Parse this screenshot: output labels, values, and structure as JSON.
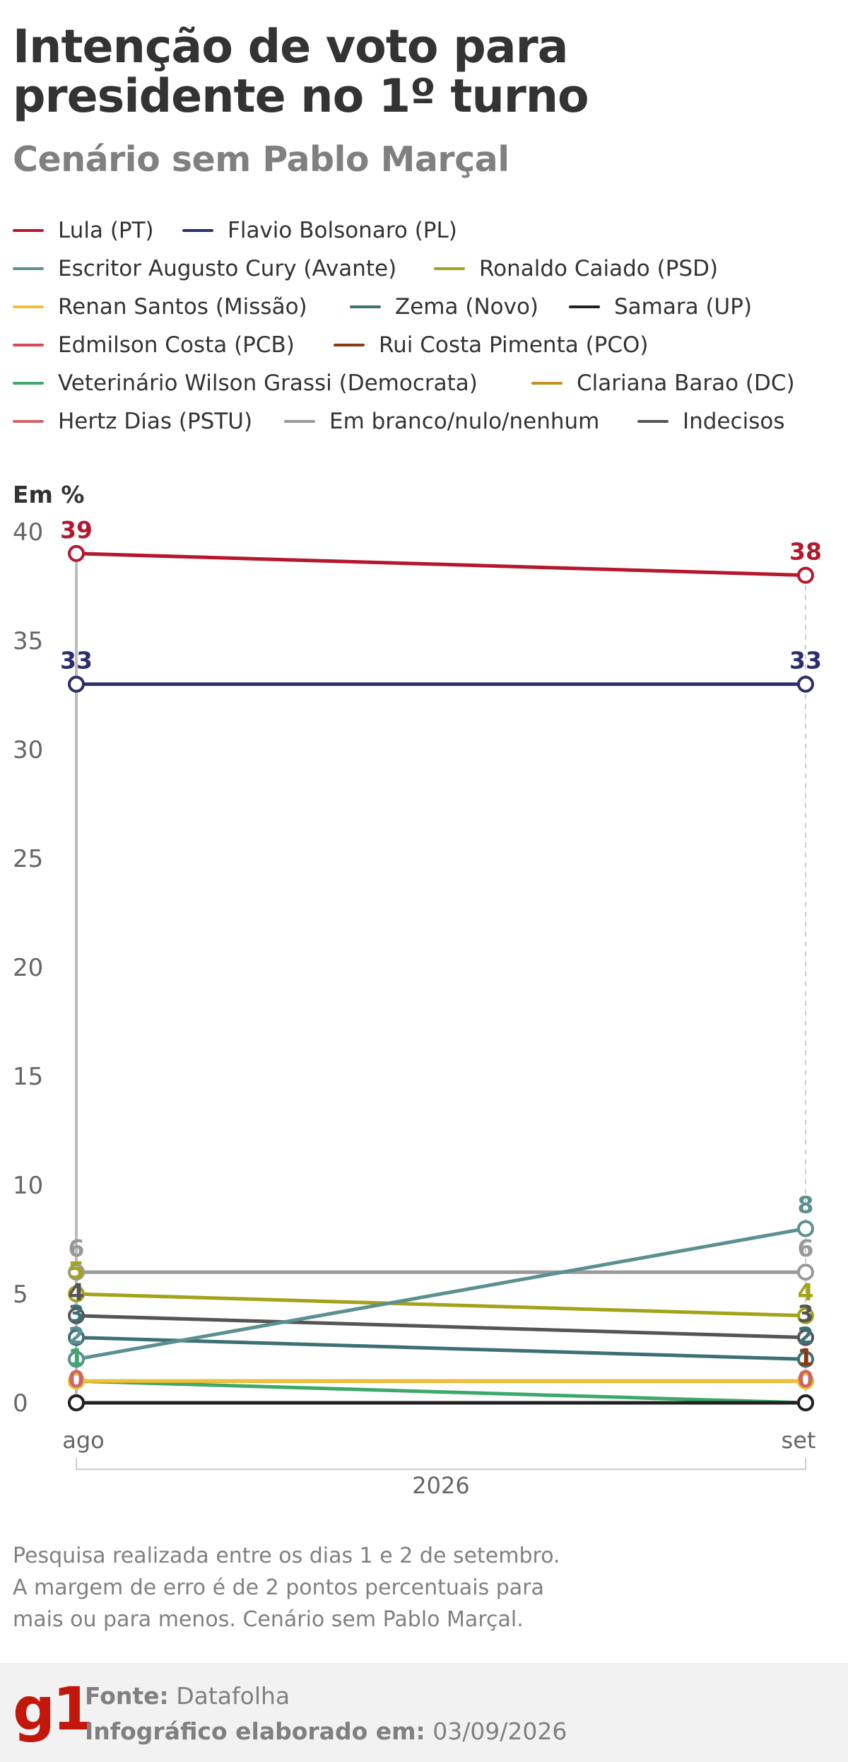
{
  "header": {
    "title": "Intenção de voto para presidente no 1º turno",
    "subtitle": "Cenário sem Pablo Marçal"
  },
  "legend": [
    {
      "label": "Lula (PT)",
      "color": "#b5172e"
    },
    {
      "label": "Flavio Bolsonaro (PL)",
      "color": "#2c2f6b"
    },
    {
      "label": "Escritor Augusto Cury (Avante)",
      "color": "#5b9090"
    },
    {
      "label": "Ronaldo Caiado (PSD)",
      "color": "#a3a319"
    },
    {
      "label": "Renan Santos (Missão)",
      "color": "#f0c233"
    },
    {
      "label": "Zema (Novo)",
      "color": "#3d7075"
    },
    {
      "label": "Samara (UP)",
      "color": "#222222"
    },
    {
      "label": "Edmilson Costa (PCB)",
      "color": "#d44a5c"
    },
    {
      "label": "Rui Costa Pimenta (PCO)",
      "color": "#8a3a0e"
    },
    {
      "label": "Veterinário Wilson Grassi (Democrata)",
      "color": "#3ea86b"
    },
    {
      "label": "Clariana Barao (DC)",
      "color": "#c49122"
    },
    {
      "label": "Hertz Dias (PSTU)",
      "color": "#cc6666"
    },
    {
      "label": "Em branco/nulo/nenhum",
      "color": "#999999"
    },
    {
      "label": "Indecisos",
      "color": "#555555"
    }
  ],
  "chart_data": {
    "type": "line",
    "x": [
      "ago",
      "set"
    ],
    "xlabel": "2026",
    "ylabel": "Em %",
    "ylim": [
      0,
      40
    ],
    "yticks": [
      "0",
      "5",
      "10",
      "15",
      "20",
      "25",
      "30",
      "35",
      "40"
    ],
    "grid": false,
    "series": [
      {
        "name": "Lula (PT)",
        "color": "#b5172e",
        "values": [
          39,
          38
        ],
        "labels": [
          "39",
          "38"
        ]
      },
      {
        "name": "Flavio Bolsonaro (PL)",
        "color": "#2c2f6b",
        "values": [
          33,
          33
        ],
        "labels": [
          "33",
          "33"
        ]
      },
      {
        "name": "Escritor Augusto Cury (Avante)",
        "color": "#5b9090",
        "values": [
          2,
          8
        ],
        "labels": [
          "",
          "8"
        ]
      },
      {
        "name": "Ronaldo Caiado (PSD)",
        "color": "#a3a319",
        "values": [
          5,
          4
        ],
        "labels": [
          "5",
          "4"
        ]
      },
      {
        "name": "Renan Santos (Missão)",
        "color": "#f0c233",
        "values": [
          1,
          1
        ],
        "labels": [
          "",
          ""
        ]
      },
      {
        "name": "Zema (Novo)",
        "color": "#3d7075",
        "values": [
          3,
          2
        ],
        "labels": [
          "3",
          "2"
        ]
      },
      {
        "name": "Samara (UP)",
        "color": "#222222",
        "values": [
          0,
          0
        ],
        "labels": [
          "",
          ""
        ]
      },
      {
        "name": "Edmilson Costa (PCB)",
        "color": "#d44a5c",
        "values": [
          0,
          0
        ],
        "labels": [
          "",
          ""
        ]
      },
      {
        "name": "Rui Costa Pimenta (PCO)",
        "color": "#8a3a0e",
        "values": [
          1,
          1
        ],
        "labels": [
          "",
          "1"
        ]
      },
      {
        "name": "Veterinário Wilson Grassi (Democrata)",
        "color": "#3ea86b",
        "values": [
          1,
          0
        ],
        "labels": [
          "1",
          ""
        ]
      },
      {
        "name": "Clariana Barao (DC)",
        "color": "#c49122",
        "values": [
          0,
          0
        ],
        "labels": [
          "",
          ""
        ]
      },
      {
        "name": "Hertz Dias (PSTU)",
        "color": "#cc6666",
        "values": [
          0,
          0
        ],
        "labels": [
          "0",
          "0"
        ]
      },
      {
        "name": "Em branco/nulo/nenhum",
        "color": "#999999",
        "values": [
          6,
          6
        ],
        "labels": [
          "6",
          "6"
        ]
      },
      {
        "name": "Indecisos",
        "color": "#555555",
        "values": [
          4,
          3
        ],
        "labels": [
          "4",
          "3"
        ]
      }
    ],
    "extra_labels": [
      {
        "x": "ago",
        "text": "2",
        "color": "#5b9090"
      }
    ]
  },
  "notes": [
    "Pesquisa realizada entre os dias 1 e 2 de setembro.",
    "A margem de erro é de 2 pontos percentuais para",
    "mais ou para menos. Cenário sem Pablo Marçal."
  ],
  "footer": {
    "logo": "g1",
    "source_label": "Fonte:",
    "source_value": "Datafolha",
    "date_label": "Infográfico elaborado em:",
    "date_value": "03/09/2026"
  }
}
